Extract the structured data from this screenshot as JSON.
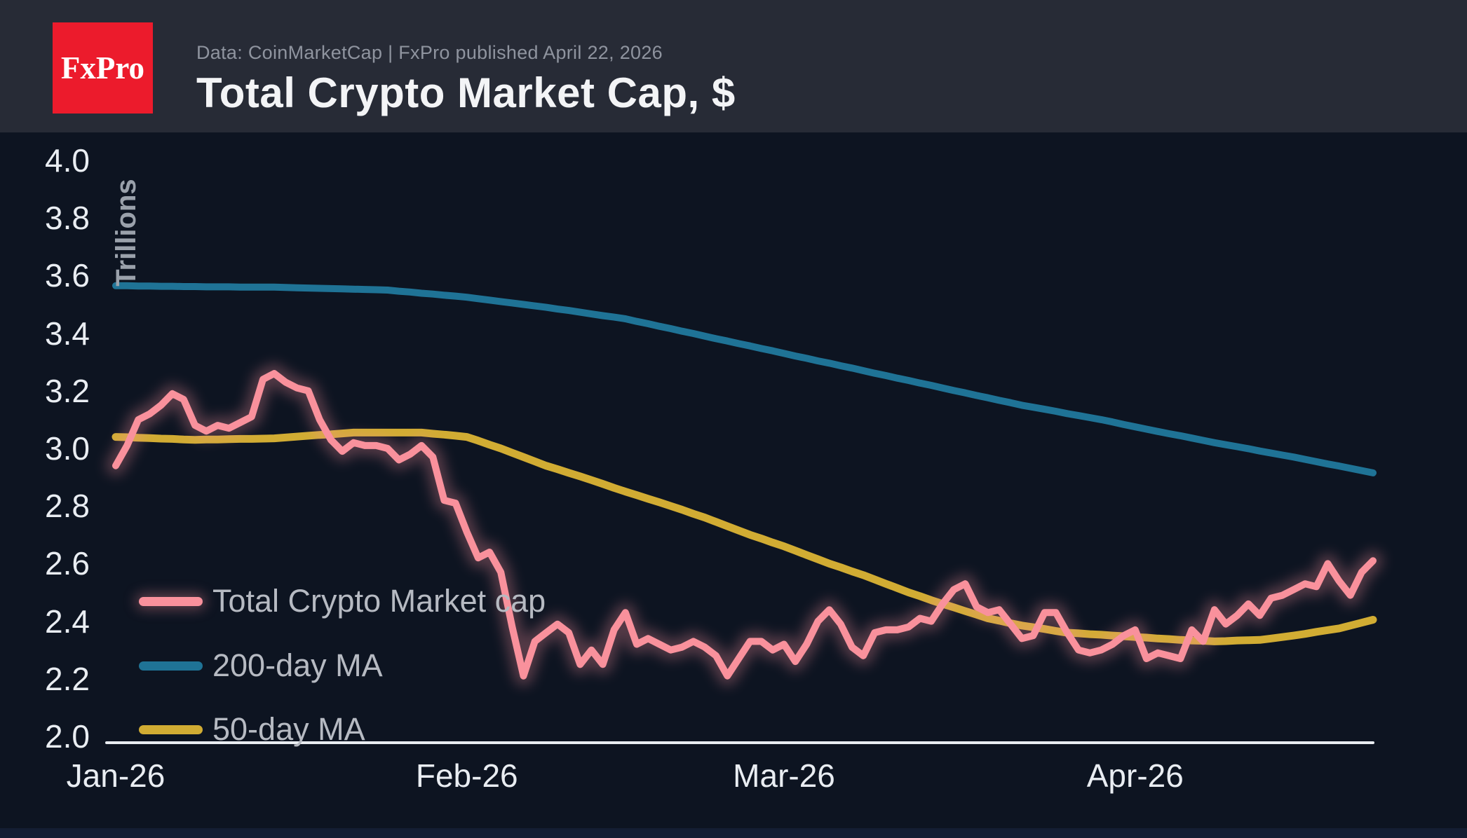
{
  "header": {
    "logo_text": "FxPro",
    "subtitle": "Data: CoinMarketCap | FxPro published April 22, 2026",
    "title": "Total Crypto Market Cap, $"
  },
  "colors": {
    "background": "#0d1421",
    "header_bg": "#272b36",
    "footer_bg": "#141e33",
    "logo_bg": "#ec1b2c",
    "logo_text": "#ffffff",
    "title": "#f3f4f6",
    "subtitle": "#8f949f",
    "tick": "#e9edf2",
    "axis": "#e9edf2",
    "axis_title": "#9aa1ab",
    "legend_text": "#b6bac2",
    "market_cap_line": "#f9919c",
    "ma200_line": "#1f7396",
    "ma50_line": "#d1ac33"
  },
  "chart_data": {
    "type": "line",
    "title": "Total Crypto Market Cap, $",
    "y_axis_title": "Trillions",
    "ylim": [
      2.0,
      4.0
    ],
    "grid": false,
    "legend_position": "lower-left",
    "x_description": "Daily values, Jan 1 2026 through Apr 22 2026",
    "x_ticks": [
      {
        "label": "Jan-26",
        "day": 0
      },
      {
        "label": "Feb-26",
        "day": 31
      },
      {
        "label": "Mar-26",
        "day": 59
      },
      {
        "label": "Apr-26",
        "day": 90
      }
    ],
    "y_ticks": [
      {
        "label": "4.0",
        "value": 4.0
      },
      {
        "label": "3.8",
        "value": 3.8
      },
      {
        "label": "3.6",
        "value": 3.6
      },
      {
        "label": "3.4",
        "value": 3.4
      },
      {
        "label": "3.2",
        "value": 3.2
      },
      {
        "label": "3.0",
        "value": 3.0
      },
      {
        "label": "2.8",
        "value": 2.8
      },
      {
        "label": "2.6",
        "value": 2.6
      },
      {
        "label": "2.4",
        "value": 2.4
      },
      {
        "label": "2.2",
        "value": 2.2
      },
      {
        "label": "2.0",
        "value": 2.0
      }
    ],
    "series": [
      {
        "name": "Total Crypto Market cap",
        "color": "#f9919c",
        "glow": true,
        "width": 10,
        "values": [
          2.94,
          3.01,
          3.1,
          3.12,
          3.15,
          3.19,
          3.17,
          3.08,
          3.06,
          3.08,
          3.07,
          3.09,
          3.11,
          3.24,
          3.26,
          3.23,
          3.21,
          3.2,
          3.1,
          3.03,
          2.99,
          3.02,
          3.01,
          3.01,
          3.0,
          2.96,
          2.98,
          3.01,
          2.97,
          2.82,
          2.81,
          2.71,
          2.62,
          2.64,
          2.57,
          2.38,
          2.21,
          2.33,
          2.36,
          2.39,
          2.36,
          2.25,
          2.3,
          2.25,
          2.37,
          2.43,
          2.32,
          2.34,
          2.32,
          2.3,
          2.31,
          2.33,
          2.31,
          2.28,
          2.21,
          2.27,
          2.33,
          2.33,
          2.3,
          2.32,
          2.26,
          2.32,
          2.4,
          2.44,
          2.39,
          2.31,
          2.28,
          2.36,
          2.37,
          2.37,
          2.38,
          2.41,
          2.4,
          2.46,
          2.51,
          2.53,
          2.45,
          2.43,
          2.44,
          2.39,
          2.34,
          2.35,
          2.43,
          2.43,
          2.36,
          2.3,
          2.29,
          2.3,
          2.32,
          2.35,
          2.37,
          2.27,
          2.29,
          2.28,
          2.27,
          2.37,
          2.33,
          2.44,
          2.39,
          2.42,
          2.46,
          2.42,
          2.48,
          2.49,
          2.51,
          2.53,
          2.52,
          2.6,
          2.54,
          2.49,
          2.57,
          2.61
        ]
      },
      {
        "name": "200-day MA",
        "color": "#1f7396",
        "glow": false,
        "width": 10,
        "values": [
          3.565,
          3.565,
          3.564,
          3.564,
          3.563,
          3.563,
          3.562,
          3.562,
          3.561,
          3.561,
          3.561,
          3.56,
          3.56,
          3.56,
          3.56,
          3.559,
          3.558,
          3.557,
          3.556,
          3.555,
          3.554,
          3.553,
          3.552,
          3.551,
          3.55,
          3.546,
          3.543,
          3.539,
          3.536,
          3.532,
          3.529,
          3.525,
          3.52,
          3.515,
          3.51,
          3.505,
          3.5,
          3.495,
          3.49,
          3.484,
          3.479,
          3.473,
          3.467,
          3.461,
          3.456,
          3.45,
          3.441,
          3.433,
          3.424,
          3.416,
          3.407,
          3.399,
          3.39,
          3.381,
          3.373,
          3.364,
          3.356,
          3.347,
          3.339,
          3.33,
          3.321,
          3.313,
          3.304,
          3.296,
          3.287,
          3.279,
          3.27,
          3.261,
          3.253,
          3.244,
          3.236,
          3.227,
          3.219,
          3.21,
          3.201,
          3.193,
          3.184,
          3.176,
          3.167,
          3.159,
          3.15,
          3.143,
          3.136,
          3.129,
          3.121,
          3.114,
          3.107,
          3.1,
          3.092,
          3.083,
          3.075,
          3.067,
          3.059,
          3.051,
          3.044,
          3.036,
          3.028,
          3.02,
          3.013,
          3.006,
          2.999,
          2.991,
          2.984,
          2.977,
          2.97,
          2.962,
          2.954,
          2.946,
          2.939,
          2.931,
          2.923,
          2.915
        ]
      },
      {
        "name": "50-day MA",
        "color": "#d1ac33",
        "glow": false,
        "width": 11,
        "values": [
          3.04,
          3.039,
          3.037,
          3.036,
          3.034,
          3.033,
          3.031,
          3.03,
          3.031,
          3.031,
          3.032,
          3.033,
          3.033,
          3.034,
          3.035,
          3.038,
          3.041,
          3.044,
          3.047,
          3.049,
          3.052,
          3.055,
          3.055,
          3.055,
          3.055,
          3.055,
          3.055,
          3.055,
          3.051,
          3.048,
          3.044,
          3.04,
          3.027,
          3.013,
          3.0,
          2.985,
          2.97,
          2.955,
          2.94,
          2.928,
          2.915,
          2.903,
          2.89,
          2.877,
          2.863,
          2.85,
          2.838,
          2.825,
          2.813,
          2.8,
          2.787,
          2.773,
          2.76,
          2.745,
          2.73,
          2.715,
          2.7,
          2.687,
          2.673,
          2.66,
          2.645,
          2.63,
          2.615,
          2.6,
          2.587,
          2.573,
          2.56,
          2.545,
          2.53,
          2.515,
          2.5,
          2.487,
          2.473,
          2.46,
          2.448,
          2.435,
          2.423,
          2.41,
          2.402,
          2.393,
          2.385,
          2.379,
          2.373,
          2.366,
          2.36,
          2.358,
          2.355,
          2.353,
          2.35,
          2.348,
          2.345,
          2.343,
          2.34,
          2.338,
          2.335,
          2.333,
          2.332,
          2.33,
          2.331,
          2.333,
          2.334,
          2.335,
          2.34,
          2.345,
          2.35,
          2.356,
          2.363,
          2.369,
          2.375,
          2.385,
          2.395,
          2.405
        ]
      }
    ]
  }
}
